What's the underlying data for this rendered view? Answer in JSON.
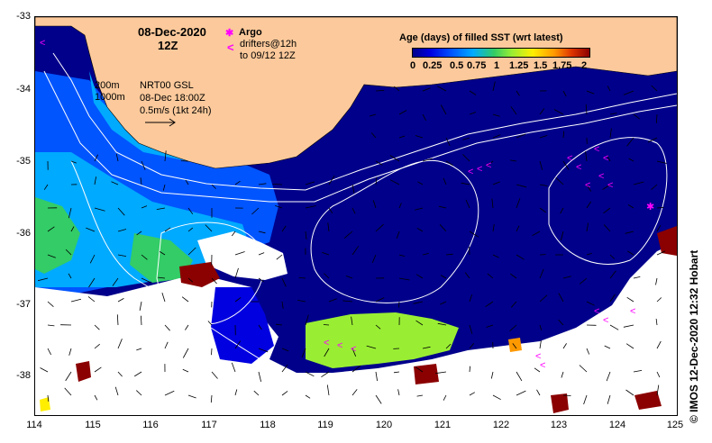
{
  "header": {
    "date": "08-Dec-2020",
    "hour": "12Z",
    "legend_title": "Age (days) of filled SST (wrt latest)"
  },
  "legend_scale": [
    "0",
    "0.25",
    "0.5",
    "0.75",
    "1",
    "1.25",
    "1.5",
    "1.75",
    "2"
  ],
  "argo_key": {
    "argo_label": "Argo",
    "drifters_label": "drifters@12h",
    "drifters_period": "to 09/12 12Z",
    "argo_symbol": "✱",
    "drifter_symbol": "<"
  },
  "isobaths": [
    "200m",
    "1000m"
  ],
  "current_key": {
    "source": "NRT00 GSL",
    "time": "08-Dec 18:00Z",
    "speed": "0.5m/s (1kt 24h)"
  },
  "axes": {
    "latitudes": [
      "-33",
      "-34",
      "-35",
      "-36",
      "-37",
      "-38"
    ],
    "longitudes": [
      "114",
      "115",
      "116",
      "117",
      "118",
      "119",
      "120",
      "121",
      "122",
      "123",
      "124",
      "125"
    ]
  },
  "credit": "© IMOS 12-Dec-2020 12:32 Hobart",
  "colors": {
    "land": "#fbc99b",
    "ocean_deep": "#00008b",
    "age_025": "#0000e0",
    "age_05": "#0055ff",
    "age_075": "#00aaff",
    "age_1": "#33cc66",
    "age_125": "#99ee33",
    "age_15": "#ffee00",
    "age_175": "#ff9900",
    "age_2": "#8b0000",
    "argo": "#ff00ff"
  }
}
